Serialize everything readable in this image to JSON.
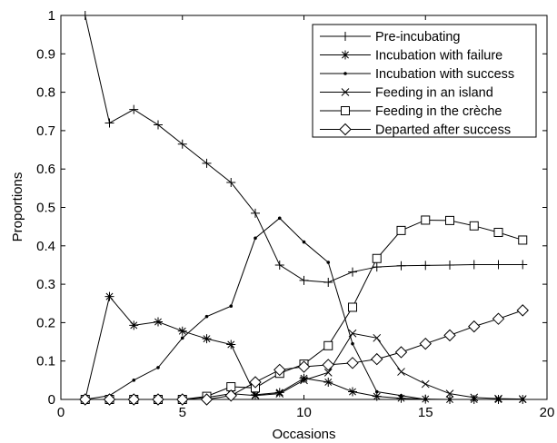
{
  "chart_data": {
    "type": "line",
    "title": "",
    "xlabel": "Occasions",
    "ylabel": "Proportions",
    "xlim": [
      0,
      20
    ],
    "ylim": [
      0,
      1
    ],
    "xticks": [
      "0",
      "5",
      "10",
      "15",
      "20"
    ],
    "yticks": [
      "0",
      "0.1",
      "0.2",
      "0.3",
      "0.4",
      "0.5",
      "0.6",
      "0.7",
      "0.8",
      "0.9",
      "1"
    ],
    "grid": false,
    "legend_position": "top-right",
    "x": [
      1,
      2,
      3,
      4,
      5,
      6,
      7,
      8,
      9,
      10,
      11,
      12,
      13,
      14,
      15,
      16,
      17,
      18,
      19
    ],
    "series": [
      {
        "name": "Pre-incubating",
        "marker": "plus",
        "values": [
          1.0,
          0.72,
          0.755,
          0.715,
          0.665,
          0.615,
          0.565,
          0.485,
          0.35,
          0.31,
          0.305,
          0.332,
          0.345,
          0.348,
          0.349,
          0.35,
          0.351,
          0.351,
          0.351
        ]
      },
      {
        "name": "Incubation with failure",
        "marker": "asterisk",
        "values": [
          0.0,
          0.268,
          0.193,
          0.202,
          0.178,
          0.158,
          0.143,
          0.012,
          0.018,
          0.055,
          0.045,
          0.02,
          0.008,
          0.003,
          0.001,
          0.0,
          0.0,
          0.0,
          0.0
        ]
      },
      {
        "name": "Incubation with success",
        "marker": "dot",
        "values": [
          0.0,
          0.01,
          0.05,
          0.083,
          0.16,
          0.216,
          0.243,
          0.42,
          0.472,
          0.41,
          0.357,
          0.145,
          0.02,
          0.01,
          0.0,
          0.0,
          0.0,
          0.0,
          0.0
        ]
      },
      {
        "name": "Feeding in an island",
        "marker": "x",
        "values": [
          0.0,
          0.0,
          0.0,
          0.0,
          0.0,
          0.005,
          0.015,
          0.01,
          0.015,
          0.05,
          0.07,
          0.172,
          0.16,
          0.072,
          0.04,
          0.015,
          0.005,
          0.002,
          0.001
        ]
      },
      {
        "name": "Feeding in the crèche",
        "marker": "square",
        "values": [
          0.0,
          0.0,
          0.0,
          0.0,
          0.0,
          0.008,
          0.033,
          0.03,
          0.068,
          0.092,
          0.14,
          0.24,
          0.367,
          0.44,
          0.467,
          0.466,
          0.452,
          0.435,
          0.415
        ]
      },
      {
        "name": "Departed after success",
        "marker": "diamond",
        "values": [
          0.0,
          0.0,
          0.0,
          0.0,
          0.0,
          0.0,
          0.01,
          0.045,
          0.077,
          0.085,
          0.09,
          0.095,
          0.105,
          0.123,
          0.145,
          0.167,
          0.19,
          0.21,
          0.232
        ]
      }
    ]
  }
}
